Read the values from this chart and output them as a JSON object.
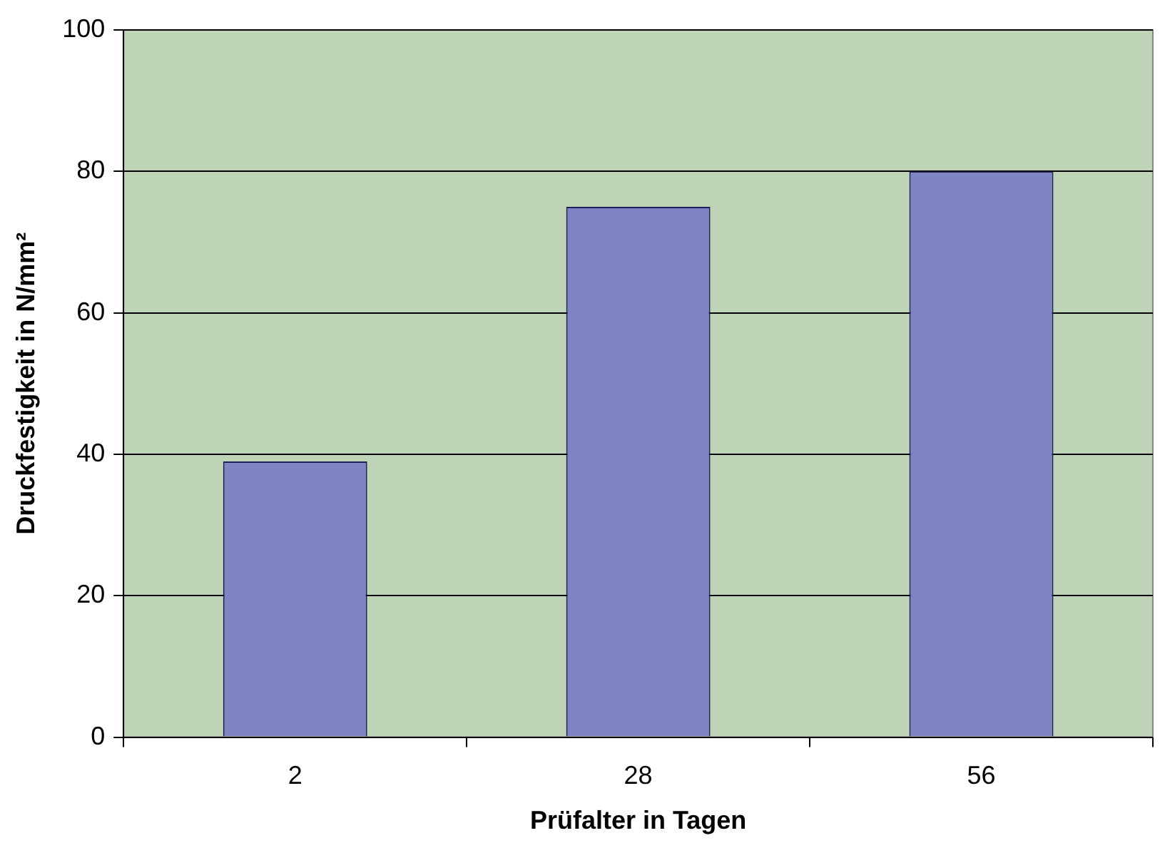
{
  "chart_data": {
    "type": "bar",
    "xlabel": "Prüfalter in Tagen",
    "ylabel": "Druckfestigkeit in N/mm²",
    "categories": [
      "2",
      "28",
      "56"
    ],
    "values": [
      39,
      75,
      80
    ],
    "color": "#7f84c4",
    "ylim": [
      0,
      100
    ],
    "yticks": [
      0,
      20,
      40,
      60,
      80,
      100
    ],
    "grid": "y",
    "legend": false
  }
}
